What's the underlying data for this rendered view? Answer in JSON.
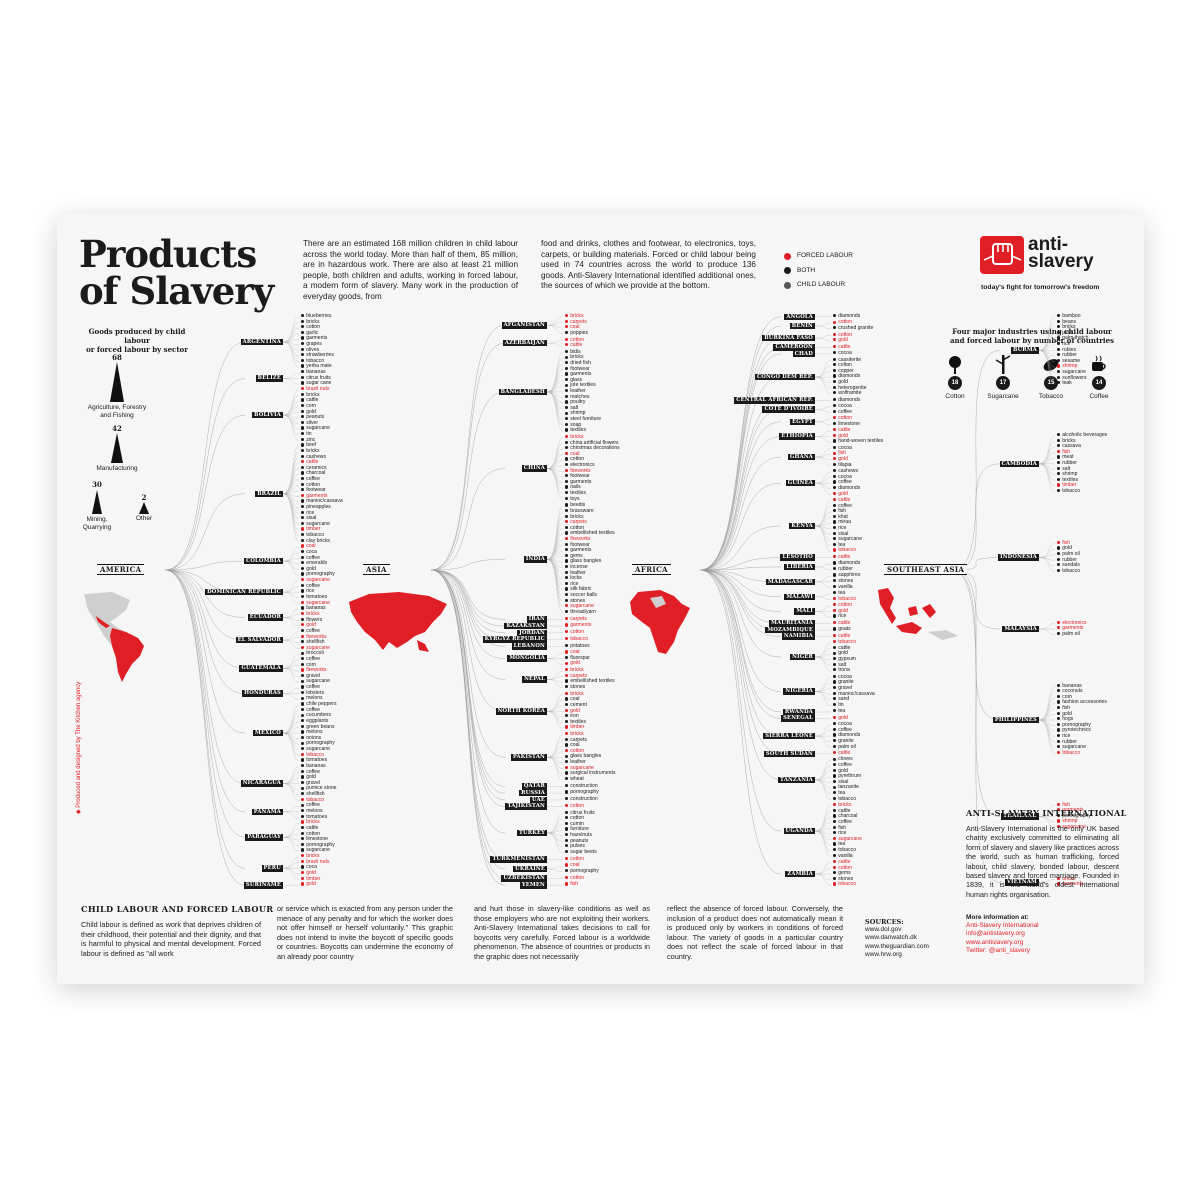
{
  "title": "Products\nof Slavery",
  "intro": {
    "col1": "There are an estimated 168 million children in child labour across the world today. More than half of them, 85 million, are in hazardous work. There are also at least 21 million people, both children and adults, working in forced labour, a modern form of slavery. Many work in the production of everyday goods, from",
    "col2": "food and drinks, clothes and footwear, to electronics, toys, carpets, or building materials. Forced or child labour being used in 74 countries across the world to produce 136 goods. Anti-Slavery International identified additional ones, the sources of which we provide at the bottom."
  },
  "legend": [
    {
      "label": "FORCED LABOUR",
      "color": "#e01e25"
    },
    {
      "label": "BOTH",
      "color": "#1a1a1a"
    },
    {
      "label": "CHILD LABOUR",
      "color": "#555555"
    }
  ],
  "logo": {
    "text": "anti-\nslavery",
    "tagline": "today's fight for tomorrow's freedom"
  },
  "sectors": {
    "heading": "Goods produced by child labour\nor forced labour by sector",
    "items": [
      {
        "label": "Agriculture, Forestry and Fishing",
        "value": 68
      },
      {
        "label": "Manufacturing",
        "value": 42
      },
      {
        "label": "Mining, Quarrying",
        "value": 30
      },
      {
        "label": "Other",
        "value": 2
      }
    ]
  },
  "industries": {
    "heading": "Four major industries using child labour\nand forced labour by number of countries",
    "items": [
      {
        "label": "Cotton",
        "value": 18
      },
      {
        "label": "Sugarcane",
        "value": 17
      },
      {
        "label": "Tobacco",
        "value": 15
      },
      {
        "label": "Coffee",
        "value": 14
      }
    ]
  },
  "regions": [
    {
      "name": "AMERICA",
      "countries": [
        {
          "name": "ARGENTINA",
          "products": [
            "blueberries",
            "bricks",
            "cotton",
            "garlic",
            "garments",
            "grapes",
            "olives",
            "strawberries",
            "tobacco",
            "yerba mate"
          ]
        },
        {
          "name": "BELIZE",
          "products": [
            "bananas",
            "citrus fruits",
            "sugar cane"
          ]
        },
        {
          "name": "BOLIVIA",
          "products": [
            "brazil nuts",
            "bricks",
            "cattle",
            "corn",
            "gold",
            "peanuts",
            "silver",
            "sugarcane",
            "tin",
            "zinc"
          ]
        },
        {
          "name": "BRAZIL",
          "products": [
            "beef",
            "bricks",
            "cashews",
            "cattle",
            "ceramics",
            "charcoal",
            "coffee",
            "cotton",
            "footwear",
            "garments",
            "manioc/cassava",
            "pineapples",
            "rice",
            "sisal",
            "sugarcane",
            "timber",
            "tobacco",
            "clay bricks"
          ]
        },
        {
          "name": "COLOMBIA",
          "products": [
            "coal",
            "coca",
            "coffee",
            "emeralds",
            "gold",
            "pornography"
          ]
        },
        {
          "name": "DOMINICAN REPUBLIC",
          "products": [
            "sugarcane",
            "coffee",
            "rice",
            "tomatoes",
            "sugarcane"
          ]
        },
        {
          "name": "ECUADOR",
          "products": [
            "bananas",
            "bricks",
            "flowers",
            "gold"
          ]
        },
        {
          "name": "EL SALVADOR",
          "products": [
            "coffee",
            "fireworks",
            "shellfish",
            "sugarcane"
          ]
        },
        {
          "name": "GUATEMALA",
          "products": [
            "broccoli",
            "coffee",
            "corn",
            "fireworks",
            "gravel",
            "sugarcane"
          ]
        },
        {
          "name": "HONDURAS",
          "products": [
            "coffee",
            "lobsters",
            "melons"
          ]
        },
        {
          "name": "MEXICO",
          "products": [
            "chile peppers",
            "coffee",
            "cucumbers",
            "eggplants",
            "green beans",
            "melons",
            "onions",
            "pornography",
            "sugarcane",
            "tobacco",
            "tomatoes"
          ]
        },
        {
          "name": "NICARAGUA",
          "products": [
            "bananas",
            "coffee",
            "gold",
            "gravel",
            "pumice stone",
            "shellfish",
            "tobacco"
          ]
        },
        {
          "name": "PANAMA",
          "products": [
            "coffee",
            "melons",
            "tomatoes"
          ]
        },
        {
          "name": "PARAGUAY",
          "products": [
            "bricks",
            "cattle",
            "cotton",
            "limestone",
            "pornography",
            "sugarcane"
          ]
        },
        {
          "name": "PERU",
          "products": [
            "bricks",
            "brazil nuts",
            "coca",
            "gold",
            "timber"
          ]
        },
        {
          "name": "SURINAME",
          "products": [
            "gold"
          ]
        }
      ]
    },
    {
      "name": "ASIA",
      "countries": [
        {
          "name": "AFGANISTAN",
          "products": [
            "bricks",
            "carpets",
            "coal",
            "poppies"
          ]
        },
        {
          "name": "AZERBAIJAN",
          "products": [
            "cotton",
            "cattle"
          ]
        },
        {
          "name": "BANGLADESH",
          "products": [
            "bidis",
            "bricks",
            "dried fish",
            "footwear",
            "garments",
            "glass",
            "jute textiles",
            "leather",
            "matches",
            "poultry",
            "salt",
            "shrimp",
            "steel furniture",
            "soap",
            "textiles"
          ]
        },
        {
          "name": "CHINA",
          "products": [
            "bricks",
            "china artificial flowers",
            "christmas decorations",
            "coal",
            "cotton",
            "electronics",
            "fireworks",
            "footwear",
            "garments",
            "nails",
            "textiles",
            "toys"
          ]
        },
        {
          "name": "INDIA",
          "products": [
            "beedis",
            "brassware",
            "bricks",
            "carpets",
            "cotton",
            "embellished textiles",
            "fireworks",
            "footwear",
            "garments",
            "gems",
            "glass bangles",
            "incense",
            "leather",
            "locks",
            "rice",
            "silk fabric",
            "soccer balls",
            "stones",
            "sugarcane",
            "thread/yarn"
          ]
        },
        {
          "name": "IRAN",
          "products": [
            "carpets"
          ]
        },
        {
          "name": "KAZAKSTAN",
          "products": [
            "garments"
          ]
        },
        {
          "name": "JORDAN",
          "products": [
            "cotton"
          ]
        },
        {
          "name": "KYRGYZ REPUBLIC",
          "products": [
            "tobacco"
          ]
        },
        {
          "name": "LEBANON",
          "products": [
            "potatoes"
          ]
        },
        {
          "name": "MONGOLIA",
          "products": [
            "coal",
            "fluorspar",
            "gold"
          ]
        },
        {
          "name": "NEPAL",
          "products": [
            "bricks",
            "carpets",
            "embellished textiles",
            "stones"
          ]
        },
        {
          "name": "NORTH KOREA",
          "products": [
            "bricks",
            "coal",
            "cement",
            "gold",
            "iron",
            "textiles",
            "timber"
          ]
        },
        {
          "name": "PAKISTAN",
          "products": [
            "bricks",
            "carpets",
            "coal",
            "cotton",
            "glass bangles",
            "leather",
            "sugarcane",
            "surgical instruments",
            "wheat"
          ]
        },
        {
          "name": "QATAR",
          "products": [
            "construction"
          ]
        },
        {
          "name": "RUSSIA",
          "products": [
            "pornography"
          ]
        },
        {
          "name": "UAE",
          "products": [
            "construction"
          ]
        },
        {
          "name": "TAJIKISTAN",
          "products": [
            "cotton"
          ]
        },
        {
          "name": "TURKEY",
          "products": [
            "citrus fruits",
            "cotton",
            "cumin",
            "furniture",
            "hazelnuts",
            "peanuts",
            "pulses",
            "sugar beets"
          ]
        },
        {
          "name": "TURKMENISTAN",
          "products": [
            "cotton"
          ]
        },
        {
          "name": "UKRAINE",
          "products": [
            "coal",
            "pornography"
          ]
        },
        {
          "name": "UZBEKISTAN",
          "products": [
            "cotton"
          ]
        },
        {
          "name": "YEMEN",
          "products": [
            "fish"
          ]
        }
      ]
    },
    {
      "name": "AFRICA",
      "countries": [
        {
          "name": "ANGOLA",
          "products": [
            "diamonds"
          ]
        },
        {
          "name": "BENIN",
          "products": [
            "cotton",
            "crushed granite"
          ]
        },
        {
          "name": "BURKINA FASO",
          "products": [
            "cotton",
            "gold"
          ]
        },
        {
          "name": "CAMEROON",
          "products": [
            "cattle"
          ]
        },
        {
          "name": "CHAD",
          "products": [
            "cocoa"
          ]
        },
        {
          "name": "CONGO DEM REP.",
          "products": [
            "cassiterite",
            "coltan",
            "copper",
            "diamonds",
            "gold",
            "heterogenite",
            "wolframite"
          ]
        },
        {
          "name": "CENTRAL AFRICAN REP.",
          "products": [
            "diamonds"
          ]
        },
        {
          "name": "COTE D'IVOIRE",
          "products": [
            "cocoa",
            "coffee"
          ]
        },
        {
          "name": "EGYPT",
          "products": [
            "cotton",
            "limestone"
          ]
        },
        {
          "name": "ETHIOPIA",
          "products": [
            "cattle",
            "gold",
            "hand-woven textiles"
          ]
        },
        {
          "name": "GHANA",
          "products": [
            "cocoa",
            "fish",
            "gold",
            "tilapia"
          ]
        },
        {
          "name": "GUINEA",
          "products": [
            "cashews",
            "cocoa",
            "coffee",
            "diamonds",
            "gold"
          ]
        },
        {
          "name": "KENYA",
          "products": [
            "cattle",
            "coffee",
            "fish",
            "khat",
            "miraa",
            "rice",
            "sisal",
            "sugarcane",
            "tea",
            "tobacco"
          ]
        },
        {
          "name": "LESOTHO",
          "products": [
            "cattle"
          ]
        },
        {
          "name": "LIBERIA",
          "products": [
            "diamonds",
            "rubber"
          ]
        },
        {
          "name": "MADAGASCAR",
          "products": [
            "sapphires",
            "stones",
            "vanilla"
          ]
        },
        {
          "name": "MALAWI",
          "products": [
            "tea",
            "tobacco"
          ]
        },
        {
          "name": "MALI",
          "products": [
            "cotton",
            "gold",
            "rice"
          ]
        },
        {
          "name": "MAURITANIA",
          "products": [
            "cattle"
          ]
        },
        {
          "name": "MOZAMBIQUE",
          "products": [
            "goats"
          ]
        },
        {
          "name": "NAMIBIA",
          "products": [
            "cattle"
          ]
        },
        {
          "name": "NIGER",
          "products": [
            "tobacco",
            "cattle",
            "gold",
            "gypsum",
            "salt",
            "trona"
          ]
        },
        {
          "name": "NIGERIA",
          "products": [
            "cocoa",
            "granite",
            "gravel",
            "manioc/cassava",
            "sand",
            "tin"
          ]
        },
        {
          "name": "RWANDA",
          "products": [
            "tea"
          ]
        },
        {
          "name": "SENEGAL",
          "products": [
            "gold"
          ]
        },
        {
          "name": "SIERRA LEONE",
          "products": [
            "cocoa",
            "coffee",
            "diamonds",
            "granite",
            "palm oil"
          ]
        },
        {
          "name": "SOUTH SUDAN",
          "products": [
            "cattle"
          ]
        },
        {
          "name": "TANZANIA",
          "products": [
            "cloves",
            "coffee",
            "gold",
            "pyrethrum",
            "sisal",
            "tanzanite",
            "tea",
            "tobacco"
          ]
        },
        {
          "name": "UGANDA",
          "products": [
            "bricks",
            "cattle",
            "charcoal",
            "coffee",
            "fish",
            "rice",
            "sugarcane",
            "tea",
            "tobacco",
            "vanilla"
          ]
        },
        {
          "name": "ZAMBIA",
          "products": [
            "cattle",
            "cotton",
            "gems",
            "stones",
            "tobacco"
          ]
        }
      ]
    },
    {
      "name": "SOUTHEAST ASIA",
      "countries": [
        {
          "name": "BURMA",
          "products": [
            "bamboo",
            "beans",
            "bricks",
            "jade",
            "palm thatch",
            "rice",
            "rubies",
            "rubber",
            "sesame",
            "shrimp",
            "sugarcane",
            "sunflowers",
            "teak"
          ]
        },
        {
          "name": "CAMBODIA",
          "products": [
            "alcoholic beverages",
            "bricks",
            "cassava",
            "fish",
            "meat",
            "rubber",
            "salt",
            "shrimp",
            "textiles",
            "timber",
            "tobacco"
          ]
        },
        {
          "name": "INDONESIA",
          "products": [
            "fish",
            "gold",
            "palm oil",
            "rubber",
            "sandals",
            "tobacco"
          ]
        },
        {
          "name": "MALAYSIA",
          "products": [
            "electronics",
            "garments",
            "palm oil"
          ]
        },
        {
          "name": "PHILIPPINES",
          "products": [
            "bananas",
            "coconuts",
            "corn",
            "fashion accessories",
            "fish",
            "gold",
            "hogs",
            "pornography",
            "pyrotechnics",
            "rice",
            "rubber",
            "sugarcane",
            "tobacco"
          ]
        },
        {
          "name": "THAILAND",
          "products": [
            "fish",
            "garments",
            "pornography",
            "shrimp",
            "sugarcane"
          ]
        },
        {
          "name": "VIETNAM",
          "products": [
            "bricks",
            "garments"
          ]
        }
      ]
    }
  ],
  "forced_products": [
    "garments",
    "peanuts",
    "sugarcane",
    "garments",
    "gold",
    "china artificial flowers",
    "christmas decorations",
    "fireworks",
    "electronics",
    "toys",
    "carpets",
    "garments",
    "bricks",
    "coal",
    "cement",
    "gold",
    "textiles",
    "timber",
    "cotton",
    "sugarcane",
    "wheat",
    "gold",
    "tobacco",
    "palm thatch",
    "shrimp",
    "sesame",
    "sunflowers",
    "electronics",
    "garments",
    "fish",
    "bricks",
    "cattle",
    "brazil nuts",
    "timber"
  ],
  "sections": {
    "child_head": "CHILD LABOUR AND FORCED LABOUR",
    "col1": "Child labour is defined as work that deprives children of their childhood, their potential and their dignity, and that is harmful to physical and mental development. Forced labour is defined as \"all work",
    "col2": "or service which is exacted from any person under the menace of any penalty and for which the worker does not offer himself or herself voluntarily.\" This graphic does not intend to invite the boycott of specific goods or countries. Boycotts can undermine the economy of an already poor country",
    "col3": "and hurt those in slavery-like conditions as well as those employers who are not exploiting their workers. Anti-Slavery International takes decisions to call for boycotts very carefully. Forced labour is a worldwide phenomenon. The absence of countries or products in the graphic does not necessarily",
    "col4": "reflect the absence of forced labour. Conversely, the inclusion of a product does not automatically mean it is produced only by workers in conditions of forced labour. The variety of goods in a particular country does not reflect the scale of forced labour in that country.",
    "sources_head": "SOURCES:",
    "sources": [
      "www.dol.gov",
      "www.danwatch.dk",
      "www.theguardian.com",
      "www.hrw.org"
    ],
    "asi_head": "ANTI-SLAVERY INTERNATIONAL",
    "asi_text": "Anti-Slavery International is the only UK based charity exclusively committed to eliminating all form of slavery and slavery like practices across the world, such as human trafficking, forced labour, child slavery, bonded labour, descent based slavery and forced marriage. Founded in 1839, it is the world's oldest international human rights organisation.",
    "more_info": "More information at:",
    "links": [
      "Anti-Slavery International",
      "info@antislavery.org",
      "www.antislavery.org",
      "Twitter: @anti_slavery"
    ],
    "credit": "Produced and designed by The Kitchen agency"
  }
}
